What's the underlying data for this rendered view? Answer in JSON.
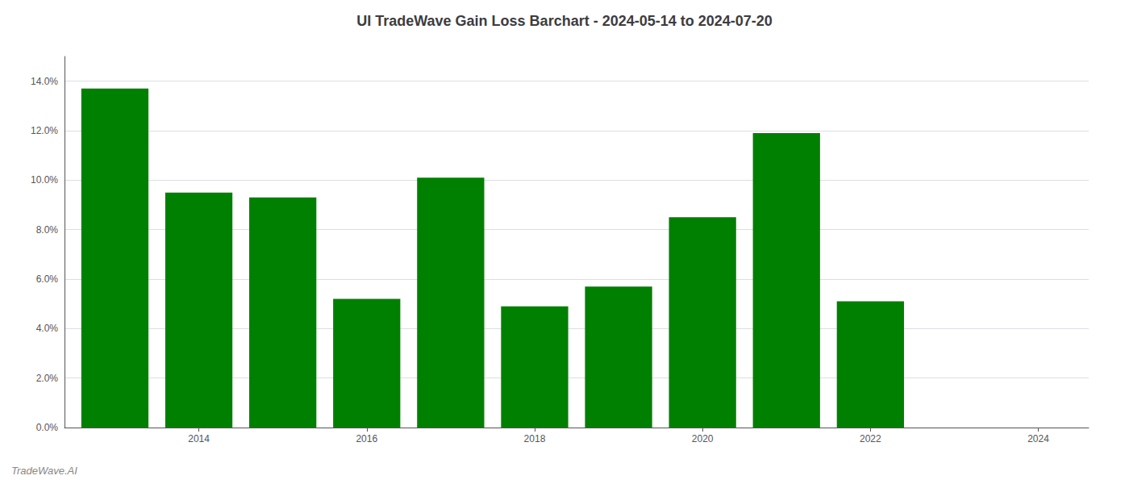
{
  "chart_data": {
    "type": "bar",
    "title": "UI TradeWave Gain Loss Barchart - 2024-05-14 to 2024-07-20",
    "annotations": [
      "TradeWave.AI"
    ],
    "x": [
      2013,
      2014,
      2015,
      2016,
      2017,
      2018,
      2019,
      2020,
      2021,
      2022,
      2023
    ],
    "values": [
      0.137,
      0.095,
      0.093,
      0.052,
      0.101,
      0.049,
      0.057,
      0.085,
      0.119,
      0.051,
      0.0
    ],
    "color": "#008000",
    "xlim": [
      2012.4,
      2024.6
    ],
    "xticks": [
      2014,
      2016,
      2018,
      2020,
      2022,
      2024
    ],
    "ylim": [
      0,
      0.15
    ],
    "yticks": [
      {
        "value": 0.0,
        "label": "0.0%"
      },
      {
        "value": 0.02,
        "label": "2.0%"
      },
      {
        "value": 0.04,
        "label": "4.0%"
      },
      {
        "value": 0.06,
        "label": "6.0%"
      },
      {
        "value": 0.08,
        "label": "8.0%"
      },
      {
        "value": 0.1,
        "label": "10.0%"
      },
      {
        "value": 0.12,
        "label": "12.0%"
      },
      {
        "value": 0.14,
        "label": "14.0%"
      }
    ],
    "grid": true
  }
}
